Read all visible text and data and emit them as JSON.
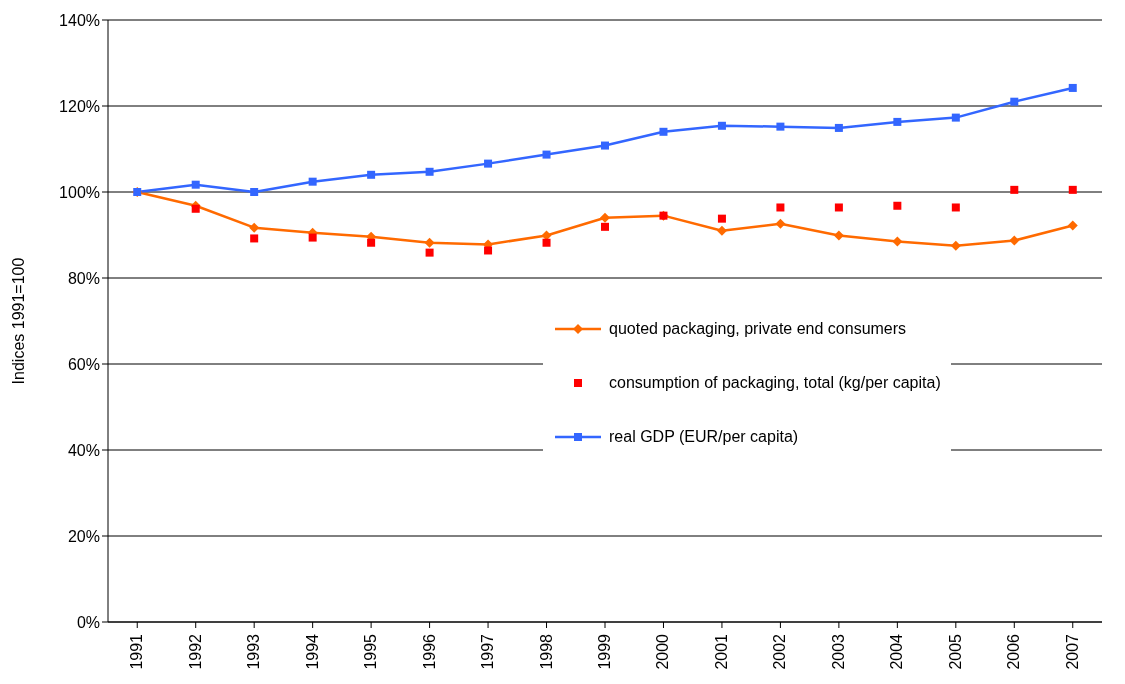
{
  "chart_data": {
    "type": "line",
    "ylabel": "Indices 1991=100",
    "categories": [
      "1991",
      "1992",
      "1993",
      "1994",
      "1995",
      "1996",
      "1997",
      "1998",
      "1999",
      "2000",
      "2001",
      "2002",
      "2003",
      "2004",
      "2005",
      "2006",
      "2007"
    ],
    "series": [
      {
        "name": "quoted packaging, private end consumers",
        "marker": "diamond",
        "color": "#ff6a00",
        "values": [
          100,
          96.8,
          91.7,
          90.5,
          89.6,
          88.2,
          87.8,
          89.9,
          94,
          94.5,
          91,
          92.6,
          89.9,
          88.5,
          87.5,
          88.7,
          92.2
        ]
      },
      {
        "name": "consumption of packaging, total (kg/per capita)",
        "type": "scatter",
        "marker": "square",
        "color": "#ff0000",
        "values": [
          null,
          96.1,
          89.2,
          89.4,
          88.2,
          85.9,
          86.4,
          88.2,
          91.9,
          94.5,
          93.8,
          96.4,
          96.4,
          96.8,
          96.4,
          100.5,
          100.5
        ]
      },
      {
        "name": "real GDP (EUR/per capita)",
        "marker": "square",
        "color": "#3366ff",
        "values": [
          100,
          101.7,
          100,
          102.4,
          104,
          104.7,
          106.6,
          108.7,
          110.8,
          114,
          115.4,
          115.2,
          114.9,
          116.3,
          117.3,
          121,
          124.2
        ]
      }
    ],
    "ylim": [
      0,
      140
    ],
    "yticks": [
      {
        "value": 0,
        "label": "0%"
      },
      {
        "value": 20,
        "label": "20%"
      },
      {
        "value": 40,
        "label": "40%"
      },
      {
        "value": 60,
        "label": "60%"
      },
      {
        "value": 80,
        "label": "80%"
      },
      {
        "value": 100,
        "label": "100%"
      },
      {
        "value": 120,
        "label": "120%"
      },
      {
        "value": 140,
        "label": "140%"
      }
    ],
    "grid": "y",
    "legend": "right"
  }
}
